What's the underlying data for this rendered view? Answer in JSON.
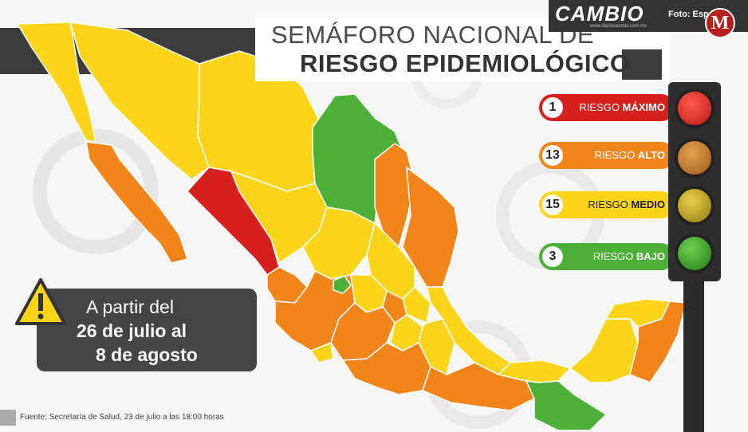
{
  "header": {
    "title_line1": "SEMÁFORO NACIONAL DE",
    "title_line2": "RIESGO EPIDEMIOLÓGICO"
  },
  "brand": {
    "name": "CAMBIO",
    "url": "www.diariocambio.com.mx",
    "photo_credit": "Foto: Especial",
    "logo_letter": "M"
  },
  "legend": [
    {
      "count": "1",
      "text": "RIESGO ",
      "emph": "MÁXIMO",
      "color": "#d6201f"
    },
    {
      "count": "13",
      "text": "RIESGO ",
      "emph": "ALTO",
      "color": "#f2851a"
    },
    {
      "count": "15",
      "text": "RIESGO ",
      "emph": "MEDIO",
      "color": "#fcd419"
    },
    {
      "count": "3",
      "text": "RIESGO ",
      "emph": "BAJO",
      "color": "#4bb035"
    }
  ],
  "date_notice": {
    "line1": "A partir del",
    "line2": "26 de julio al",
    "line3": "8 de agosto"
  },
  "source": "Fuente: Secretaría de Salud, 23 de julio a las 18:00 horas",
  "colors": {
    "max": "#d6201f",
    "high": "#f2851a",
    "medium": "#fcd419",
    "low": "#4bb035"
  }
}
